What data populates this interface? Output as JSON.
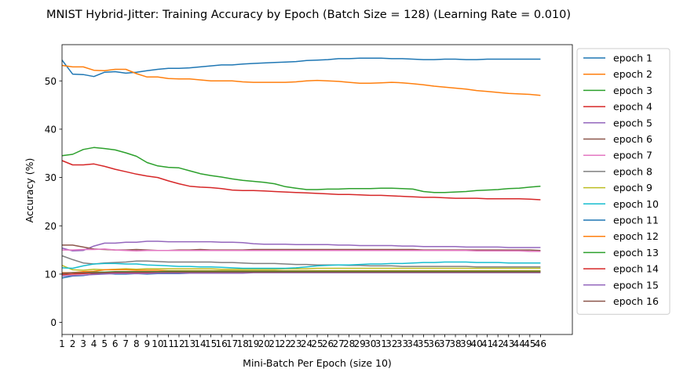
{
  "chart_data": {
    "type": "line",
    "title": "MNIST Hybrid-Jitter: Training Accuracy by Epoch (Batch Size = 128) (Learning Rate = 0.010)",
    "xlabel": "Mini-Batch Per Epoch (size 10)",
    "ylabel": "Accuracy (%)",
    "x": [
      1,
      2,
      3,
      4,
      5,
      6,
      7,
      8,
      9,
      10,
      11,
      12,
      13,
      14,
      15,
      16,
      17,
      18,
      19,
      20,
      21,
      22,
      23,
      24,
      25,
      26,
      27,
      28,
      29,
      30,
      31,
      32,
      33,
      34,
      35,
      36,
      37,
      38,
      39,
      40,
      41,
      42,
      43,
      44,
      45,
      46
    ],
    "xlim": [
      1,
      49
    ],
    "ylim": [
      -2.5,
      57.5
    ],
    "yticks": [
      0,
      10,
      20,
      30,
      40,
      50
    ],
    "grid": false,
    "legend_position": "outside-right",
    "series": [
      {
        "name": "epoch 1",
        "color": "#1f77b4",
        "values": [
          54.3,
          51.4,
          51.3,
          50.9,
          51.8,
          51.9,
          51.6,
          51.8,
          52.1,
          52.4,
          52.6,
          52.6,
          52.7,
          52.9,
          53.1,
          53.3,
          53.3,
          53.5,
          53.6,
          53.7,
          53.8,
          53.9,
          54.0,
          54.2,
          54.3,
          54.4,
          54.6,
          54.6,
          54.7,
          54.7,
          54.7,
          54.6,
          54.6,
          54.5,
          54.4,
          54.4,
          54.5,
          54.5,
          54.4,
          54.4,
          54.5,
          54.5,
          54.5,
          54.5,
          54.5,
          54.5
        ]
      },
      {
        "name": "epoch 2",
        "color": "#ff7f0e",
        "values": [
          53.2,
          52.9,
          52.9,
          52.2,
          52.1,
          52.4,
          52.4,
          51.5,
          50.8,
          50.8,
          50.5,
          50.4,
          50.4,
          50.2,
          50.0,
          50.0,
          50.0,
          49.8,
          49.7,
          49.7,
          49.7,
          49.7,
          49.8,
          50.0,
          50.1,
          50.0,
          49.9,
          49.7,
          49.5,
          49.5,
          49.6,
          49.7,
          49.6,
          49.4,
          49.2,
          48.9,
          48.7,
          48.5,
          48.3,
          48.0,
          47.8,
          47.6,
          47.4,
          47.3,
          47.2,
          47.0
        ]
      },
      {
        "name": "epoch 3",
        "color": "#2ca02c",
        "values": [
          34.5,
          34.8,
          35.8,
          36.2,
          36.0,
          35.7,
          35.1,
          34.4,
          33.1,
          32.4,
          32.1,
          32.0,
          31.4,
          30.8,
          30.4,
          30.1,
          29.7,
          29.4,
          29.2,
          29.0,
          28.7,
          28.1,
          27.8,
          27.5,
          27.5,
          27.6,
          27.6,
          27.7,
          27.7,
          27.7,
          27.8,
          27.8,
          27.7,
          27.6,
          27.1,
          26.9,
          26.9,
          27.0,
          27.1,
          27.3,
          27.4,
          27.5,
          27.7,
          27.8,
          28.0,
          28.2
        ]
      },
      {
        "name": "epoch 4",
        "color": "#d62728",
        "values": [
          33.5,
          32.6,
          32.6,
          32.8,
          32.3,
          31.7,
          31.2,
          30.7,
          30.3,
          30.0,
          29.3,
          28.7,
          28.2,
          28.0,
          27.9,
          27.7,
          27.4,
          27.3,
          27.3,
          27.2,
          27.1,
          27.0,
          26.9,
          26.8,
          26.7,
          26.6,
          26.5,
          26.5,
          26.4,
          26.3,
          26.3,
          26.2,
          26.1,
          26.0,
          25.9,
          25.9,
          25.8,
          25.7,
          25.7,
          25.7,
          25.6,
          25.6,
          25.6,
          25.6,
          25.5,
          25.4
        ]
      },
      {
        "name": "epoch 5",
        "color": "#9467bd",
        "values": [
          15.4,
          14.8,
          14.9,
          15.8,
          16.4,
          16.4,
          16.6,
          16.6,
          16.8,
          16.8,
          16.7,
          16.7,
          16.7,
          16.7,
          16.7,
          16.6,
          16.6,
          16.5,
          16.3,
          16.2,
          16.2,
          16.2,
          16.1,
          16.1,
          16.1,
          16.1,
          16.0,
          16.0,
          15.9,
          15.9,
          15.9,
          15.9,
          15.8,
          15.8,
          15.7,
          15.7,
          15.7,
          15.7,
          15.6,
          15.6,
          15.6,
          15.6,
          15.5,
          15.5,
          15.5,
          15.5
        ]
      },
      {
        "name": "epoch 6",
        "color": "#8c564b",
        "values": [
          16.0,
          16.0,
          15.6,
          15.2,
          15.1,
          15.0,
          15.0,
          15.1,
          15.0,
          14.9,
          14.9,
          15.0,
          15.0,
          15.1,
          15.0,
          15.0,
          15.0,
          15.0,
          15.1,
          15.1,
          15.1,
          15.1,
          15.1,
          15.1,
          15.1,
          15.1,
          15.1,
          15.1,
          15.1,
          15.1,
          15.1,
          15.1,
          15.1,
          15.1,
          15.0,
          15.0,
          15.0,
          15.0,
          15.0,
          15.0,
          15.0,
          15.0,
          15.0,
          15.0,
          15.0,
          14.9
        ]
      },
      {
        "name": "epoch 7",
        "color": "#e377c2",
        "values": [
          15.0,
          15.0,
          15.1,
          15.1,
          15.2,
          15.0,
          14.9,
          14.8,
          14.9,
          14.9,
          14.9,
          14.9,
          14.9,
          14.9,
          14.9,
          14.9,
          14.9,
          14.9,
          14.9,
          14.9,
          14.9,
          14.9,
          14.9,
          14.9,
          14.9,
          14.9,
          14.9,
          14.9,
          14.9,
          14.9,
          14.9,
          14.9,
          14.9,
          14.9,
          14.9,
          14.9,
          14.9,
          14.9,
          14.9,
          14.8,
          14.8,
          14.8,
          14.8,
          14.8,
          14.7,
          14.7
        ]
      },
      {
        "name": "epoch 8",
        "color": "#7f7f7f",
        "values": [
          13.8,
          13.0,
          12.3,
          12.1,
          12.3,
          12.4,
          12.5,
          12.7,
          12.7,
          12.6,
          12.5,
          12.5,
          12.5,
          12.5,
          12.5,
          12.4,
          12.4,
          12.3,
          12.2,
          12.2,
          12.2,
          12.1,
          12.0,
          12.0,
          11.9,
          11.9,
          11.9,
          11.8,
          11.8,
          11.7,
          11.7,
          11.7,
          11.6,
          11.6,
          11.6,
          11.6,
          11.6,
          11.6,
          11.6,
          11.5,
          11.5,
          11.5,
          11.5,
          11.5,
          11.5,
          11.5
        ]
      },
      {
        "name": "epoch 9",
        "color": "#bcbd22",
        "values": [
          11.8,
          10.9,
          10.8,
          11.0,
          10.9,
          11.0,
          11.1,
          11.0,
          11.1,
          11.1,
          11.1,
          11.1,
          11.1,
          11.1,
          11.1,
          11.0,
          11.0,
          11.0,
          11.0,
          11.0,
          11.0,
          11.1,
          11.1,
          11.1,
          11.2,
          11.2,
          11.2,
          11.2,
          11.2,
          11.2,
          11.2,
          11.2,
          11.2,
          11.2,
          11.2,
          11.2,
          11.2,
          11.2,
          11.2,
          11.2,
          11.2,
          11.2,
          11.2,
          11.2,
          11.2,
          11.2
        ]
      },
      {
        "name": "epoch 10",
        "color": "#17becf",
        "values": [
          11.3,
          11.2,
          11.7,
          12.1,
          12.2,
          12.2,
          12.1,
          12.1,
          11.9,
          11.8,
          11.7,
          11.6,
          11.6,
          11.5,
          11.5,
          11.4,
          11.3,
          11.2,
          11.2,
          11.2,
          11.2,
          11.2,
          11.3,
          11.5,
          11.7,
          11.8,
          11.9,
          11.9,
          12.0,
          12.1,
          12.1,
          12.2,
          12.2,
          12.3,
          12.4,
          12.4,
          12.5,
          12.5,
          12.5,
          12.4,
          12.4,
          12.4,
          12.3,
          12.3,
          12.3,
          12.3
        ]
      },
      {
        "name": "epoch 11",
        "color": "#1f77b4",
        "values": [
          9.2,
          9.6,
          9.7,
          10.0,
          10.2,
          10.0,
          10.0,
          10.1,
          10.0,
          10.1,
          10.1,
          10.1,
          10.2,
          10.2,
          10.2,
          10.3,
          10.3,
          10.3,
          10.4,
          10.4,
          10.4,
          10.5,
          10.5,
          10.5,
          10.5,
          10.5,
          10.5,
          10.5,
          10.5,
          10.5,
          10.5,
          10.5,
          10.5,
          10.5,
          10.5,
          10.5,
          10.5,
          10.5,
          10.5,
          10.5,
          10.5,
          10.5,
          10.5,
          10.5,
          10.5,
          10.5
        ]
      },
      {
        "name": "epoch 12",
        "color": "#ff7f0e",
        "values": [
          10.3,
          10.3,
          10.5,
          10.6,
          10.9,
          10.9,
          10.9,
          10.8,
          10.8,
          10.8,
          10.7,
          10.7,
          10.7,
          10.7,
          10.7,
          10.7,
          10.7,
          10.7,
          10.7,
          10.7,
          10.7,
          10.7,
          10.7,
          10.7,
          10.7,
          10.7,
          10.7,
          10.7,
          10.7,
          10.7,
          10.7,
          10.7,
          10.7,
          10.7,
          10.7,
          10.7,
          10.7,
          10.7,
          10.7,
          10.7,
          10.7,
          10.7,
          10.7,
          10.7,
          10.7,
          10.7
        ]
      },
      {
        "name": "epoch 13",
        "color": "#2ca02c",
        "values": [
          10.1,
          10.3,
          10.3,
          10.4,
          10.4,
          10.5,
          10.5,
          10.5,
          10.5,
          10.5,
          10.6,
          10.6,
          10.6,
          10.6,
          10.6,
          10.6,
          10.6,
          10.6,
          10.6,
          10.6,
          10.6,
          10.6,
          10.6,
          10.6,
          10.6,
          10.6,
          10.6,
          10.6,
          10.6,
          10.6,
          10.6,
          10.6,
          10.6,
          10.6,
          10.6,
          10.6,
          10.6,
          10.6,
          10.6,
          10.6,
          10.6,
          10.6,
          10.6,
          10.6,
          10.6,
          10.6
        ]
      },
      {
        "name": "epoch 14",
        "color": "#d62728",
        "values": [
          9.9,
          10.0,
          10.1,
          10.2,
          10.3,
          10.3,
          10.3,
          10.3,
          10.3,
          10.3,
          10.4,
          10.4,
          10.4,
          10.4,
          10.4,
          10.4,
          10.4,
          10.4,
          10.4,
          10.4,
          10.4,
          10.4,
          10.4,
          10.4,
          10.4,
          10.4,
          10.4,
          10.4,
          10.4,
          10.4,
          10.4,
          10.4,
          10.4,
          10.4,
          10.4,
          10.4,
          10.4,
          10.4,
          10.4,
          10.4,
          10.4,
          10.4,
          10.4,
          10.4,
          10.4,
          10.4
        ]
      },
      {
        "name": "epoch 15",
        "color": "#9467bd",
        "values": [
          9.6,
          9.7,
          9.8,
          9.9,
          10.0,
          10.1,
          10.1,
          10.1,
          10.1,
          10.2,
          10.2,
          10.2,
          10.2,
          10.2,
          10.2,
          10.2,
          10.2,
          10.2,
          10.3,
          10.3,
          10.3,
          10.3,
          10.3,
          10.3,
          10.3,
          10.3,
          10.3,
          10.3,
          10.3,
          10.3,
          10.3,
          10.3,
          10.3,
          10.3,
          10.3,
          10.3,
          10.3,
          10.3,
          10.3,
          10.3,
          10.3,
          10.3,
          10.3,
          10.3,
          10.3,
          10.3
        ]
      },
      {
        "name": "epoch 16",
        "color": "#8c564b",
        "values": [
          10.2,
          10.3,
          10.3,
          10.3,
          10.3,
          10.4,
          10.4,
          10.4,
          10.4,
          10.4,
          10.4,
          10.4,
          10.4,
          10.4,
          10.4,
          10.4,
          10.4,
          10.4,
          10.4,
          10.4,
          10.4,
          10.4,
          10.4,
          10.4,
          10.4,
          10.4,
          10.4,
          10.4,
          10.4,
          10.4,
          10.4,
          10.4,
          10.4,
          10.4,
          10.4,
          10.4,
          10.4,
          10.4,
          10.4,
          10.4,
          10.4,
          10.4,
          10.4,
          10.4,
          10.4,
          10.4
        ]
      }
    ]
  }
}
